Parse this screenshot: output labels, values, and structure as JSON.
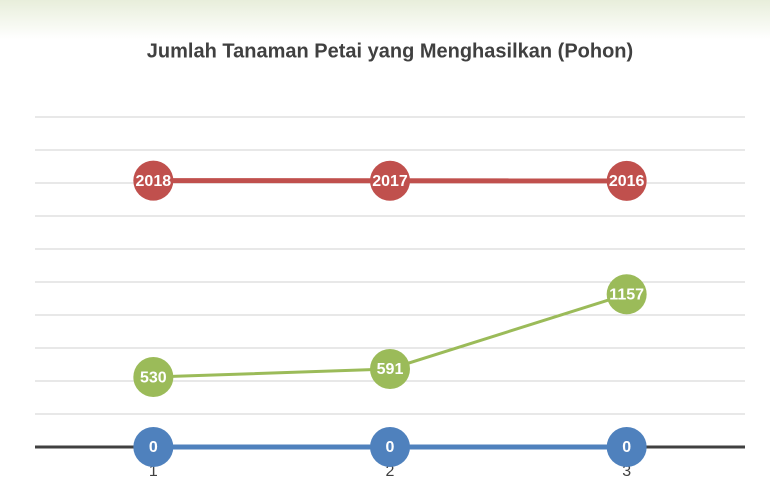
{
  "chart_data": {
    "type": "line",
    "title": "Jumlah Tanaman Petai yang Menghasilkan (Pohon)",
    "categories": [
      "1",
      "2",
      "3"
    ],
    "series": [
      {
        "color": "#9bbb59",
        "values": [
          530,
          591,
          1157
        ]
      },
      {
        "color": "#c0504d",
        "values": [
          2018,
          2017,
          2016
        ]
      },
      {
        "color": "#4f81bd",
        "values": [
          0,
          0,
          0
        ]
      }
    ],
    "ylim": [
      0,
      2500
    ],
    "yticks": [
      0,
      250,
      500,
      750,
      1000,
      1250,
      1500,
      1750,
      2000,
      2250,
      2500
    ],
    "grid": true
  }
}
